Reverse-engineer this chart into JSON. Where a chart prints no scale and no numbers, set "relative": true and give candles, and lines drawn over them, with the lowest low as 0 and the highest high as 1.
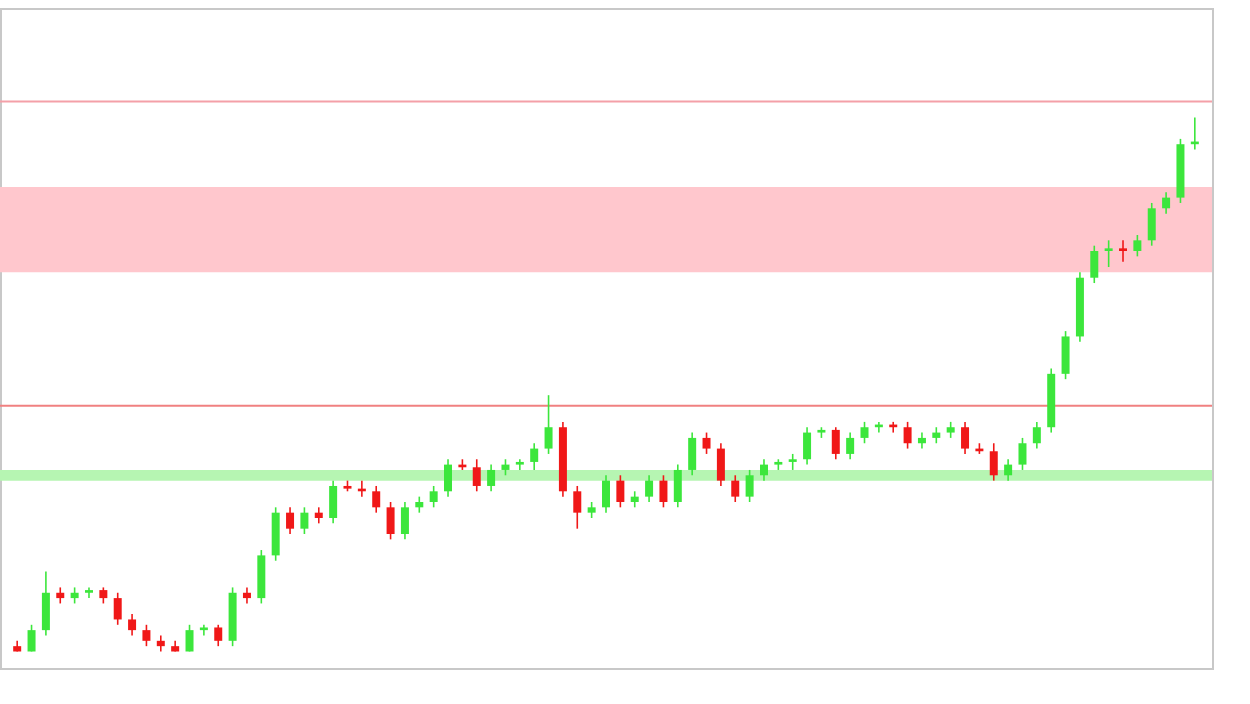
{
  "chart_data": {
    "type": "candlestick",
    "relative": true,
    "categories": [
      null,
      null,
      null,
      null,
      null,
      null,
      null,
      null,
      null,
      null,
      null,
      null,
      null,
      null,
      null,
      null,
      null,
      null,
      null,
      null,
      null,
      null,
      null,
      null,
      null,
      null,
      null,
      null,
      null,
      null,
      null,
      null,
      null,
      null,
      null,
      null,
      null,
      null,
      null,
      null,
      null,
      null,
      null,
      null,
      null,
      null,
      null,
      null,
      null,
      null,
      null,
      null,
      null,
      null,
      null,
      null,
      null,
      null,
      null,
      null,
      null,
      null,
      null,
      null,
      null,
      null,
      null,
      null,
      null,
      null,
      null,
      null,
      null,
      null,
      null,
      null,
      null,
      null,
      null,
      null,
      null,
      null,
      null
    ],
    "ohlc": [
      [
        0.01,
        0.02,
        0,
        0
      ],
      [
        0,
        0.05,
        0,
        0.04
      ],
      [
        0.04,
        0.15,
        0.03,
        0.11
      ],
      [
        0.11,
        0.12,
        0.09,
        0.1
      ],
      [
        0.1,
        0.12,
        0.09,
        0.11
      ],
      [
        0.11,
        0.12,
        0.1,
        0.115
      ],
      [
        0.115,
        0.12,
        0.09,
        0.1
      ],
      [
        0.1,
        0.11,
        0.05,
        0.06
      ],
      [
        0.06,
        0.07,
        0.03,
        0.04
      ],
      [
        0.04,
        0.05,
        0.01,
        0.02
      ],
      [
        0.02,
        0.03,
        0,
        0.01
      ],
      [
        0.01,
        0.02,
        0,
        0
      ],
      [
        0,
        0.05,
        0,
        0.04
      ],
      [
        0.04,
        0.05,
        0.03,
        0.045
      ],
      [
        0.045,
        0.05,
        0.01,
        0.02
      ],
      [
        0.02,
        0.12,
        0.01,
        0.11
      ],
      [
        0.11,
        0.12,
        0.09,
        0.1
      ],
      [
        0.1,
        0.19,
        0.09,
        0.18
      ],
      [
        0.18,
        0.27,
        0.17,
        0.26
      ],
      [
        0.26,
        0.27,
        0.22,
        0.23
      ],
      [
        0.23,
        0.27,
        0.22,
        0.26
      ],
      [
        0.26,
        0.27,
        0.24,
        0.25
      ],
      [
        0.25,
        0.32,
        0.24,
        0.31
      ],
      [
        0.31,
        0.32,
        0.3,
        0.305
      ],
      [
        0.305,
        0.32,
        0.29,
        0.3
      ],
      [
        0.3,
        0.31,
        0.26,
        0.27
      ],
      [
        0.27,
        0.28,
        0.21,
        0.22
      ],
      [
        0.22,
        0.28,
        0.21,
        0.27
      ],
      [
        0.27,
        0.29,
        0.26,
        0.28
      ],
      [
        0.28,
        0.31,
        0.27,
        0.3
      ],
      [
        0.3,
        0.36,
        0.29,
        0.35
      ],
      [
        0.35,
        0.36,
        0.34,
        0.345
      ],
      [
        0.345,
        0.36,
        0.3,
        0.31
      ],
      [
        0.31,
        0.35,
        0.3,
        0.34
      ],
      [
        0.34,
        0.36,
        0.33,
        0.35
      ],
      [
        0.35,
        0.36,
        0.34,
        0.355
      ],
      [
        0.355,
        0.39,
        0.34,
        0.38
      ],
      [
        0.38,
        0.48,
        0.37,
        0.42
      ],
      [
        0.42,
        0.43,
        0.29,
        0.3
      ],
      [
        0.3,
        0.31,
        0.23,
        0.26
      ],
      [
        0.26,
        0.28,
        0.25,
        0.27
      ],
      [
        0.27,
        0.33,
        0.26,
        0.32
      ],
      [
        0.32,
        0.33,
        0.27,
        0.28
      ],
      [
        0.28,
        0.3,
        0.27,
        0.29
      ],
      [
        0.29,
        0.33,
        0.28,
        0.32
      ],
      [
        0.32,
        0.33,
        0.27,
        0.28
      ],
      [
        0.28,
        0.35,
        0.27,
        0.34
      ],
      [
        0.34,
        0.41,
        0.33,
        0.4
      ],
      [
        0.4,
        0.41,
        0.37,
        0.38
      ],
      [
        0.38,
        0.39,
        0.31,
        0.32
      ],
      [
        0.32,
        0.33,
        0.28,
        0.29
      ],
      [
        0.29,
        0.34,
        0.28,
        0.33
      ],
      [
        0.33,
        0.36,
        0.32,
        0.35
      ],
      [
        0.35,
        0.36,
        0.34,
        0.355
      ],
      [
        0.355,
        0.37,
        0.34,
        0.36
      ],
      [
        0.36,
        0.42,
        0.35,
        0.41
      ],
      [
        0.41,
        0.42,
        0.4,
        0.415
      ],
      [
        0.415,
        0.42,
        0.36,
        0.37
      ],
      [
        0.37,
        0.41,
        0.36,
        0.4
      ],
      [
        0.4,
        0.43,
        0.39,
        0.42
      ],
      [
        0.42,
        0.43,
        0.41,
        0.425
      ],
      [
        0.425,
        0.43,
        0.41,
        0.42
      ],
      [
        0.42,
        0.43,
        0.38,
        0.39
      ],
      [
        0.39,
        0.41,
        0.38,
        0.4
      ],
      [
        0.4,
        0.42,
        0.39,
        0.41
      ],
      [
        0.41,
        0.43,
        0.4,
        0.42
      ],
      [
        0.42,
        0.43,
        0.37,
        0.38
      ],
      [
        0.38,
        0.39,
        0.37,
        0.375
      ],
      [
        0.375,
        0.39,
        0.32,
        0.33
      ],
      [
        0.33,
        0.36,
        0.32,
        0.35
      ],
      [
        0.35,
        0.4,
        0.34,
        0.39
      ],
      [
        0.39,
        0.43,
        0.38,
        0.42
      ],
      [
        0.42,
        0.53,
        0.41,
        0.52
      ],
      [
        0.52,
        0.6,
        0.51,
        0.59
      ],
      [
        0.59,
        0.71,
        0.58,
        0.7
      ],
      [
        0.7,
        0.76,
        0.69,
        0.75
      ],
      [
        0.75,
        0.77,
        0.72,
        0.755
      ],
      [
        0.755,
        0.77,
        0.73,
        0.75
      ],
      [
        0.75,
        0.78,
        0.74,
        0.77
      ],
      [
        0.77,
        0.84,
        0.76,
        0.83
      ],
      [
        0.83,
        0.86,
        0.82,
        0.85
      ],
      [
        0.85,
        0.96,
        0.84,
        0.95
      ],
      [
        0.95,
        1,
        0.94,
        0.955
      ]
    ],
    "bands": [
      {
        "axis": "y",
        "from": 0.71,
        "to": 0.87,
        "color": "#ffc7cd"
      },
      {
        "axis": "y",
        "from": 0.32,
        "to": 0.34,
        "color": "#b6f5b2"
      }
    ],
    "ref_lines": [
      {
        "axis": "y",
        "value": 0.46,
        "color": "#f08080"
      },
      {
        "axis": "y",
        "value": 1.03,
        "color": "#f4a0a8"
      }
    ]
  }
}
